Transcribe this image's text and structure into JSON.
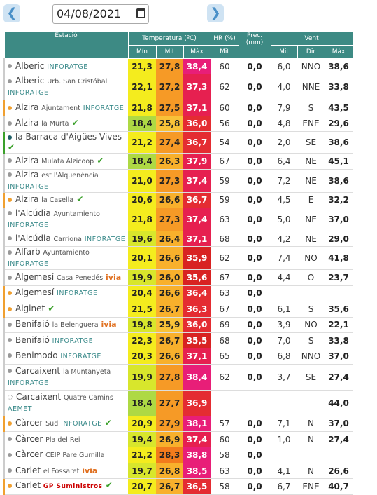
{
  "toolbar": {
    "date": "04/08/2021"
  },
  "table": {
    "groups": [
      "Estació",
      "Temperatura (ºC)",
      "HR (%)",
      "Prec. (mm)",
      "Vent"
    ],
    "subheaders": [
      "Mín",
      "Mit",
      "Màx",
      "Mit",
      "Mit",
      "Dir",
      "Màx"
    ],
    "rows": [
      {
        "dot": "gray",
        "station": "Alberic",
        "network": "INFORATGE",
        "min": "21,3",
        "mit": "27,8",
        "max": "38,4",
        "hr": "60",
        "prec": "0,0",
        "wmit": "6,0",
        "wdir": "NNO",
        "wmax": "38,6"
      },
      {
        "dot": "gray",
        "station": "Alberic",
        "detail": "Urb. San Cristóbal",
        "network": "INFORATGE",
        "tall": true,
        "min": "22,1",
        "mit": "27,2",
        "max": "37,3",
        "hr": "62",
        "prec": "0,0",
        "wmit": "4,0",
        "wdir": "NNE",
        "wmax": "33,8"
      },
      {
        "dot": "orange",
        "station": "Alzira",
        "detail": "Ajuntament",
        "network": "INFORATGE",
        "min": "21,8",
        "mit": "27,5",
        "max": "37,1",
        "hr": "60",
        "prec": "0,0",
        "wmit": "7,9",
        "wdir": "S",
        "wmax": "43,5"
      },
      {
        "dot": "gray",
        "station": "Alzira",
        "detail": "la Murta",
        "check": true,
        "min": "18,4",
        "mit": "25,8",
        "max": "36,0",
        "hr": "56",
        "prec": "0,0",
        "wmit": "4,8",
        "wdir": "ENE",
        "wmax": "29,6"
      },
      {
        "dot": "teal",
        "station": "la Barraca d'Aigües Vives",
        "check": true,
        "min": "21,2",
        "mit": "27,4",
        "max": "36,7",
        "hr": "54",
        "prec": "0,0",
        "wmit": "2,0",
        "wdir": "SE",
        "wmax": "38,6"
      },
      {
        "dot": "gray",
        "station": "Alzira",
        "detail": "Mulata Alzicoop",
        "check": true,
        "min": "18,4",
        "mit": "26,3",
        "max": "37,9",
        "hr": "67",
        "prec": "0,0",
        "wmit": "6,4",
        "wdir": "NE",
        "wmax": "45,1"
      },
      {
        "dot": "gray",
        "station": "Alzira",
        "detail": "est l'Alquenència",
        "network": "INFORATGE",
        "min": "21,0",
        "mit": "27,3",
        "max": "37,4",
        "hr": "59",
        "prec": "0,0",
        "wmit": "7,2",
        "wdir": "NE",
        "wmax": "38,6"
      },
      {
        "dot": "orange",
        "station": "Alzira",
        "detail": "la Casella",
        "check": true,
        "min": "20,6",
        "mit": "26,6",
        "max": "36,7",
        "hr": "59",
        "prec": "0,0",
        "wmit": "4,5",
        "wdir": "E",
        "wmax": "32,2"
      },
      {
        "dot": "gray",
        "station": "l'Alcúdia",
        "detail": "Ayuntamiento",
        "network": "INFORATGE",
        "min": "21,8",
        "mit": "27,3",
        "max": "37,4",
        "hr": "63",
        "prec": "0,0",
        "wmit": "5,0",
        "wdir": "NE",
        "wmax": "37,0"
      },
      {
        "dot": "gray",
        "station": "l'Alcúdia",
        "detail": "Carriona",
        "network": "INFORATGE",
        "min": "19,6",
        "mit": "26,4",
        "max": "37,1",
        "hr": "68",
        "prec": "0,0",
        "wmit": "4,2",
        "wdir": "NE",
        "wmax": "29,0"
      },
      {
        "dot": "gray",
        "station": "Alfarb",
        "detail": "Ayuntamiento",
        "network": "INFORATGE",
        "min": "20,1",
        "mit": "26,6",
        "max": "35,9",
        "hr": "62",
        "prec": "0,0",
        "wmit": "7,4",
        "wdir": "NO",
        "wmax": "41,8"
      },
      {
        "dot": "gray",
        "station": "Algemesí",
        "detail": "Casa Penedés",
        "network": "ivia",
        "min": "19,9",
        "mit": "26,0",
        "max": "35,6",
        "hr": "67",
        "prec": "0,0",
        "wmit": "4,4",
        "wdir": "O",
        "wmax": "23,7"
      },
      {
        "dot": "orange",
        "station": "Algemesí",
        "network": "INFORATGE",
        "min": "20,4",
        "mit": "26,6",
        "max": "36,4",
        "hr": "63",
        "prec": "0,0"
      },
      {
        "dot": "orange",
        "station": "Alginet",
        "check": true,
        "min": "21,5",
        "mit": "26,7",
        "max": "36,3",
        "hr": "67",
        "prec": "0,0",
        "wmit": "6,1",
        "wdir": "S",
        "wmax": "35,6"
      },
      {
        "dot": "gray",
        "station": "Benifaió",
        "detail": "la Belenguera",
        "network": "ivia",
        "min": "19,8",
        "mit": "25,9",
        "max": "36,0",
        "hr": "69",
        "prec": "0,0",
        "wmit": "3,9",
        "wdir": "NO",
        "wmax": "22,1"
      },
      {
        "dot": "gray",
        "station": "Benifaió",
        "network": "INFORATGE",
        "min": "22,3",
        "mit": "26,7",
        "max": "35,5",
        "hr": "68",
        "prec": "0,0",
        "wmit": "7,0",
        "wdir": "S",
        "wmax": "33,8"
      },
      {
        "dot": "gray",
        "station": "Benimodo",
        "network": "INFORATGE",
        "min": "20,3",
        "mit": "26,6",
        "max": "37,1",
        "hr": "65",
        "prec": "0,0",
        "wmit": "6,8",
        "wdir": "NNO",
        "wmax": "37,0"
      },
      {
        "dot": "gray",
        "station": "Carcaixent",
        "detail": "la Muntanyeta",
        "network": "INFORATGE",
        "tall": true,
        "min": "19,9",
        "mit": "27,8",
        "max": "38,4",
        "hr": "62",
        "prec": "0,0",
        "wmit": "3,7",
        "wdir": "SE",
        "wmax": "27,4"
      },
      {
        "dot": "white",
        "station": "Carcaixent",
        "detail": "Quatre Camins",
        "network": "AEMET",
        "tall": true,
        "min": "18,4",
        "mit": "27,7",
        "max": "36,9",
        "wmax": "44,0"
      },
      {
        "dot": "orange",
        "station": "Càrcer",
        "detail": "Sud",
        "network": "INFORATGE",
        "check": true,
        "min": "20,9",
        "mit": "27,9",
        "max": "38,1",
        "hr": "57",
        "prec": "0,0",
        "wmit": "7,1",
        "wdir": "N",
        "wmax": "37,0"
      },
      {
        "dot": "gray",
        "station": "Càrcer",
        "detail": "Pla del Rei",
        "min": "19,4",
        "mit": "26,9",
        "max": "37,4",
        "hr": "60",
        "prec": "0,0",
        "wmit": "1,0",
        "wdir": "N",
        "wmax": "27,4"
      },
      {
        "dot": "gray",
        "station": "Càrcer",
        "detail": "CEIP Pare Gumilla",
        "min": "21,2",
        "mit": "28,3",
        "max": "38,8",
        "hr": "58",
        "prec": "0,0"
      },
      {
        "dot": "gray",
        "station": "Carlet",
        "detail": "el Fossaret",
        "network": "ivia",
        "min": "19,7",
        "mit": "26,8",
        "max": "38,5",
        "hr": "63",
        "prec": "0,0",
        "wmit": "4,1",
        "wdir": "N",
        "wmax": "26,6"
      },
      {
        "dot": "orange",
        "station": "Carlet",
        "network": "GP Suministros",
        "check": true,
        "min": "20,7",
        "mit": "26,7",
        "max": "36,5",
        "hr": "58",
        "prec": "0,0",
        "wmit": "6,7",
        "wdir": "ENE",
        "wmax": "40,7"
      }
    ]
  }
}
